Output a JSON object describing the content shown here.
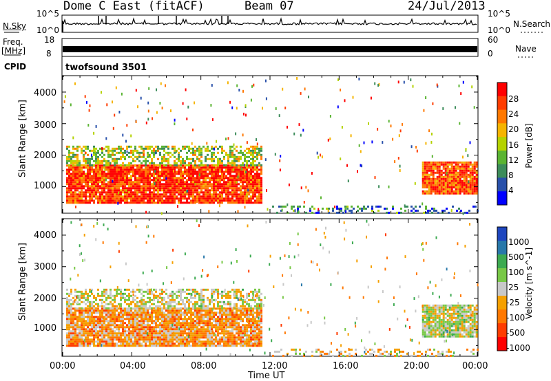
{
  "header": {
    "title": "Dome C East (fitACF)",
    "beam": "Beam 07",
    "date": "24/Jul/2013"
  },
  "nsky_panel": {
    "left_label": "N.Sky",
    "right_label": "N.Search",
    "left_ticks": [
      "10^5",
      "10^0"
    ],
    "right_ticks": [
      "10^5",
      "10^0"
    ]
  },
  "freq_panel": {
    "left_label_1": "Freq.",
    "left_label_2": "[MHz]",
    "left_ticks": [
      "18",
      "8"
    ],
    "right_label": "Nave",
    "right_ticks": [
      "60",
      "0"
    ]
  },
  "cpid": {
    "label": "CPID",
    "value": "twofsound 3501"
  },
  "power_panel": {
    "ylabel": "Slant Range [km]",
    "yticks": [
      "4000",
      "3000",
      "2000",
      "1000"
    ],
    "colorbar_label": "Power [dB]",
    "colorbar_ticks": [
      "28",
      "24",
      "20",
      "16",
      "12",
      "8",
      "4"
    ],
    "colorbar_colors": [
      "#ff0000",
      "#ff3c00",
      "#ff7800",
      "#f5b400",
      "#b4d200",
      "#5ab432",
      "#3c8c5a",
      "#2850aa",
      "#0000ff"
    ]
  },
  "velocity_panel": {
    "ylabel": "Slant Range [km]",
    "yticks": [
      "4000",
      "3000",
      "2000",
      "1000"
    ],
    "colorbar_label": "Velocity [m s^-1]",
    "colorbar_ticks": [
      "1000",
      "500",
      "100",
      "25",
      "-25",
      "-100",
      "-500",
      "-1000"
    ],
    "colorbar_colors": [
      "#1e46be",
      "#2878aa",
      "#3caa50",
      "#78c846",
      "#c8c8c8",
      "#f5a000",
      "#ff7800",
      "#ff3c00",
      "#ff0000"
    ]
  },
  "time_axis": {
    "xlabel": "Time UT",
    "ticks": [
      "00:00",
      "04:00",
      "08:00",
      "12:00",
      "16:00",
      "20:00",
      "00:00"
    ]
  },
  "chart_data": [
    {
      "type": "heatmap",
      "title": "Power",
      "x_range_ut_hours": [
        0,
        24
      ],
      "ylim": [
        180,
        4500
      ],
      "ylabel": "Slant Range [km]",
      "colorbar": {
        "label": "Power [dB]",
        "range": [
          0,
          30
        ],
        "ticks": [
          28,
          24,
          20,
          16,
          12,
          8,
          4
        ]
      },
      "regions": [
        {
          "name": "main echo",
          "t": [
            0.2,
            11.5
          ],
          "range": [
            500,
            1700
          ],
          "value_db": 26
        },
        {
          "name": "upper band",
          "t": [
            0.2,
            11.5
          ],
          "range": [
            1700,
            2300
          ],
          "value_db": 14
        },
        {
          "name": "late echo",
          "t": [
            20.8,
            24.0
          ],
          "range": [
            800,
            1800
          ],
          "value_db": 24
        },
        {
          "name": "near range",
          "t": [
            12.0,
            24.0
          ],
          "range": [
            200,
            400
          ],
          "value_db": 8
        }
      ]
    },
    {
      "type": "heatmap",
      "title": "Velocity",
      "x_range_ut_hours": [
        0,
        24
      ],
      "ylim": [
        180,
        4500
      ],
      "ylabel": "Slant Range [km]",
      "colorbar": {
        "label": "Velocity [m s^-1]",
        "range": [
          -1000,
          1000
        ],
        "ticks": [
          1000,
          500,
          100,
          25,
          -25,
          -100,
          -500,
          -1000
        ]
      },
      "regions": [
        {
          "name": "main echo",
          "t": [
            0.2,
            11.5
          ],
          "range": [
            500,
            1700
          ],
          "value_ms": -300
        },
        {
          "name": "upper band",
          "t": [
            0.2,
            11.5
          ],
          "range": [
            1700,
            2300
          ],
          "value_ms": 0
        },
        {
          "name": "late echo",
          "t": [
            20.8,
            24.0
          ],
          "range": [
            800,
            1800
          ],
          "value_ms": 50
        },
        {
          "name": "near range",
          "t": [
            12.0,
            24.0
          ],
          "range": [
            200,
            400
          ],
          "value_ms": -150
        }
      ]
    }
  ]
}
